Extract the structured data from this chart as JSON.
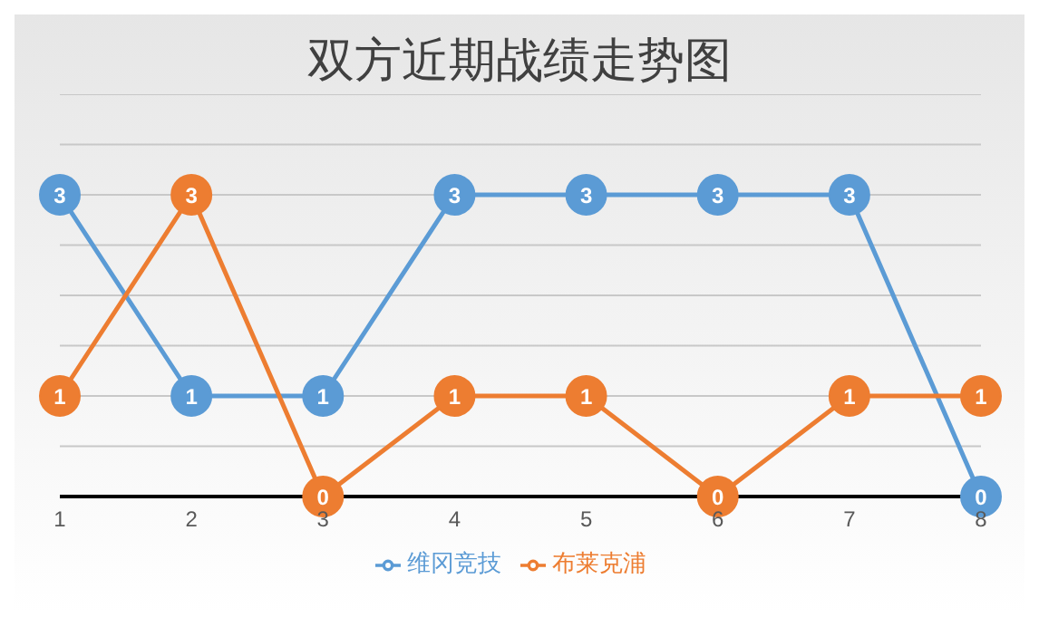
{
  "chart_data": {
    "type": "line",
    "title": "双方近期战绩走势图",
    "categories": [
      "1",
      "2",
      "3",
      "4",
      "5",
      "6",
      "7",
      "8"
    ],
    "series": [
      {
        "name": "维冈竞技",
        "color": "#5b9bd5",
        "values": [
          3,
          1,
          1,
          3,
          3,
          3,
          3,
          0
        ]
      },
      {
        "name": "布莱克浦",
        "color": "#ed7d31",
        "values": [
          1,
          3,
          0,
          1,
          1,
          0,
          1,
          1
        ]
      }
    ],
    "ylim": [
      0,
      4
    ],
    "yticks": [
      {
        "value": 0,
        "label": null
      },
      {
        "value": 0.5,
        "label": null
      },
      {
        "value": 1,
        "label": null
      },
      {
        "value": 1.5,
        "label": null
      },
      {
        "value": 2,
        "label": null
      },
      {
        "value": 2.5,
        "label": null
      },
      {
        "value": 3,
        "label": null
      },
      {
        "value": 3.5,
        "label": null
      },
      {
        "value": 4,
        "label": null
      }
    ],
    "grid": "y",
    "legend": "bottom",
    "tick_labels": "x",
    "marker": "circle",
    "line_style": "solid",
    "data_labels": true
  }
}
